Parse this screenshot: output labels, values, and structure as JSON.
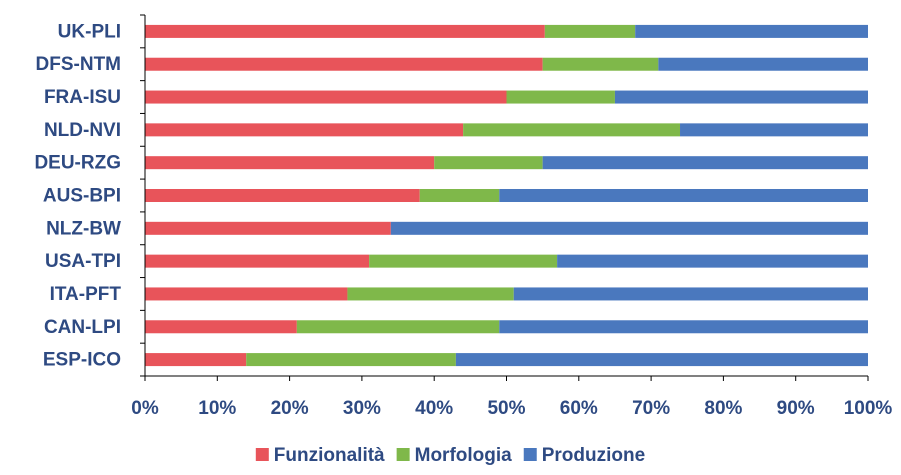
{
  "chart_data": {
    "type": "bar",
    "orientation": "horizontal",
    "stacked": "percent",
    "categories": [
      "UK-PLI",
      "DFS-NTM",
      "FRA-ISU",
      "NLD-NVI",
      "DEU-RZG",
      "AUS-BPI",
      "NLZ-BW",
      "USA-TPI",
      "ITA-PFT",
      "CAN-LPI",
      "ESP-ICO"
    ],
    "series": [
      {
        "name": "Funzionalità",
        "color": "#e8545a",
        "values": [
          55.3,
          55,
          50,
          44,
          40,
          38,
          34,
          31,
          28,
          21,
          14
        ]
      },
      {
        "name": "Morfologia",
        "color": "#7fb84a",
        "values": [
          12.5,
          16,
          15,
          30,
          15,
          11,
          0,
          26,
          23,
          28,
          29
        ]
      },
      {
        "name": "Produzione",
        "color": "#4a78be",
        "values": [
          32.2,
          29,
          35,
          26,
          45,
          51,
          66,
          43,
          49,
          51,
          57
        ]
      }
    ],
    "xlim": [
      0,
      100
    ],
    "xticks": [
      "0%",
      "10%",
      "20%",
      "30%",
      "40%",
      "50%",
      "60%",
      "70%",
      "80%",
      "90%",
      "100%"
    ],
    "grid": false,
    "legend_position": "bottom"
  }
}
